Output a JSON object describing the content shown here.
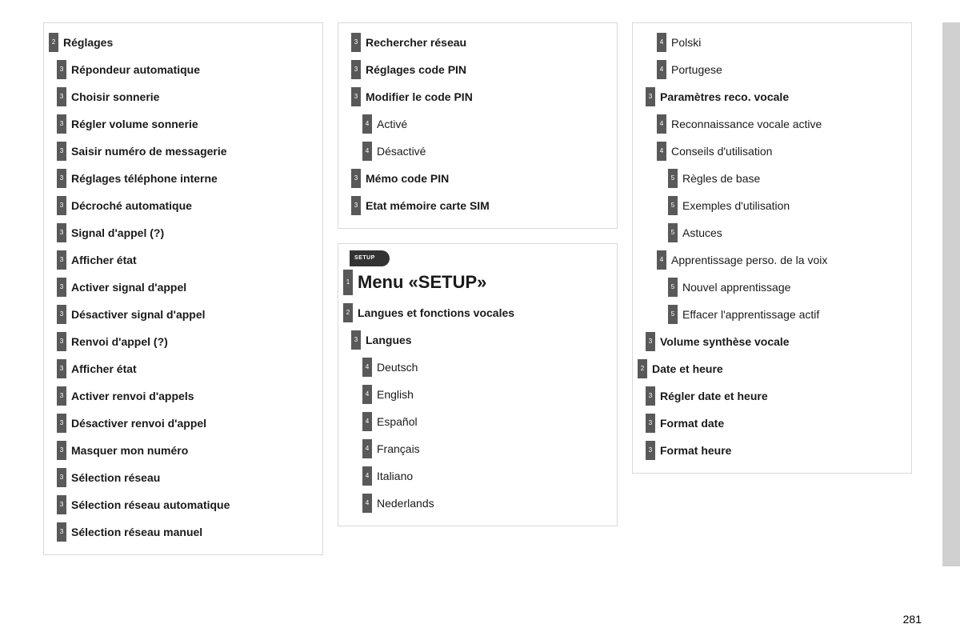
{
  "page_number": "281",
  "styles": {
    "text_color": "#1a1a1a",
    "badge_bg": "#595959",
    "badge_fg": "#ffffff",
    "border_color": "#d9d9d9",
    "side_tab_color": "#d0d0d0",
    "font_family": "Arial",
    "label_fontsize": 14,
    "heading_fontsize": 22
  },
  "columns": [
    {
      "panels": [
        {
          "items": [
            {
              "level": 2,
              "bold": true,
              "text": "Réglages"
            },
            {
              "level": 3,
              "bold": true,
              "text": "Répondeur automatique"
            },
            {
              "level": 3,
              "bold": true,
              "text": "Choisir sonnerie"
            },
            {
              "level": 3,
              "bold": true,
              "text": "Régler volume sonnerie"
            },
            {
              "level": 3,
              "bold": true,
              "text": "Saisir numéro de messagerie"
            },
            {
              "level": 3,
              "bold": true,
              "text": "Réglages téléphone interne"
            },
            {
              "level": 3,
              "bold": true,
              "text": "Décroché automatique"
            },
            {
              "level": 3,
              "bold": true,
              "text": "Signal d'appel (?)"
            },
            {
              "level": 3,
              "bold": true,
              "text": "Afficher état"
            },
            {
              "level": 3,
              "bold": true,
              "text": "Activer signal d'appel"
            },
            {
              "level": 3,
              "bold": true,
              "text": "Désactiver signal d'appel"
            },
            {
              "level": 3,
              "bold": true,
              "text": "Renvoi d'appel (?)"
            },
            {
              "level": 3,
              "bold": true,
              "text": "Afficher état"
            },
            {
              "level": 3,
              "bold": true,
              "text": "Activer renvoi d'appels"
            },
            {
              "level": 3,
              "bold": true,
              "text": "Désactiver renvoi d'appel"
            },
            {
              "level": 3,
              "bold": true,
              "text": "Masquer mon numéro"
            },
            {
              "level": 3,
              "bold": true,
              "text": "Sélection réseau"
            },
            {
              "level": 3,
              "bold": true,
              "text": "Sélection réseau automatique"
            },
            {
              "level": 3,
              "bold": true,
              "text": "Sélection réseau manuel"
            }
          ]
        }
      ]
    },
    {
      "panels": [
        {
          "items": [
            {
              "level": 3,
              "bold": true,
              "text": "Rechercher réseau"
            },
            {
              "level": 3,
              "bold": true,
              "text": "Réglages code PIN"
            },
            {
              "level": 3,
              "bold": true,
              "text": "Modifier le code PIN"
            },
            {
              "level": 4,
              "bold": false,
              "text": "Activé"
            },
            {
              "level": 4,
              "bold": false,
              "text": "Désactivé"
            },
            {
              "level": 3,
              "bold": true,
              "text": "Mémo code PIN"
            },
            {
              "level": 3,
              "bold": true,
              "text": "Etat mémoire carte SIM"
            }
          ]
        },
        {
          "setup_icon": "SETUP",
          "heading": {
            "level": 1,
            "text": "Menu «SETUP»"
          },
          "items": [
            {
              "level": 2,
              "bold": true,
              "text": "Langues et fonctions vocales"
            },
            {
              "level": 3,
              "bold": true,
              "text": "Langues"
            },
            {
              "level": 4,
              "bold": false,
              "text": "Deutsch"
            },
            {
              "level": 4,
              "bold": false,
              "text": "English"
            },
            {
              "level": 4,
              "bold": false,
              "text": "Español"
            },
            {
              "level": 4,
              "bold": false,
              "text": "Français"
            },
            {
              "level": 4,
              "bold": false,
              "text": "Italiano"
            },
            {
              "level": 4,
              "bold": false,
              "text": "Nederlands"
            }
          ]
        }
      ]
    },
    {
      "panels": [
        {
          "items": [
            {
              "level": 4,
              "bold": false,
              "text": "Polski"
            },
            {
              "level": 4,
              "bold": false,
              "text": "Portugese"
            },
            {
              "level": 3,
              "bold": true,
              "text": "Paramètres reco. vocale"
            },
            {
              "level": 4,
              "bold": false,
              "text": "Reconnaissance vocale active"
            },
            {
              "level": 4,
              "bold": false,
              "text": "Conseils d'utilisation"
            },
            {
              "level": 5,
              "bold": false,
              "text": "Règles de base"
            },
            {
              "level": 5,
              "bold": false,
              "text": "Exemples d'utilisation"
            },
            {
              "level": 5,
              "bold": false,
              "text": "Astuces"
            },
            {
              "level": 4,
              "bold": false,
              "text": "Apprentissage perso. de la voix"
            },
            {
              "level": 5,
              "bold": false,
              "text": "Nouvel apprentissage"
            },
            {
              "level": 5,
              "bold": false,
              "text": "Effacer l'apprentissage actif"
            },
            {
              "level": 3,
              "bold": true,
              "text": "Volume synthèse vocale"
            },
            {
              "level": 2,
              "bold": true,
              "text": "Date et heure"
            },
            {
              "level": 3,
              "bold": true,
              "text": "Régler date et heure"
            },
            {
              "level": 3,
              "bold": true,
              "text": "Format date"
            },
            {
              "level": 3,
              "bold": true,
              "text": "Format heure"
            }
          ]
        }
      ]
    }
  ]
}
